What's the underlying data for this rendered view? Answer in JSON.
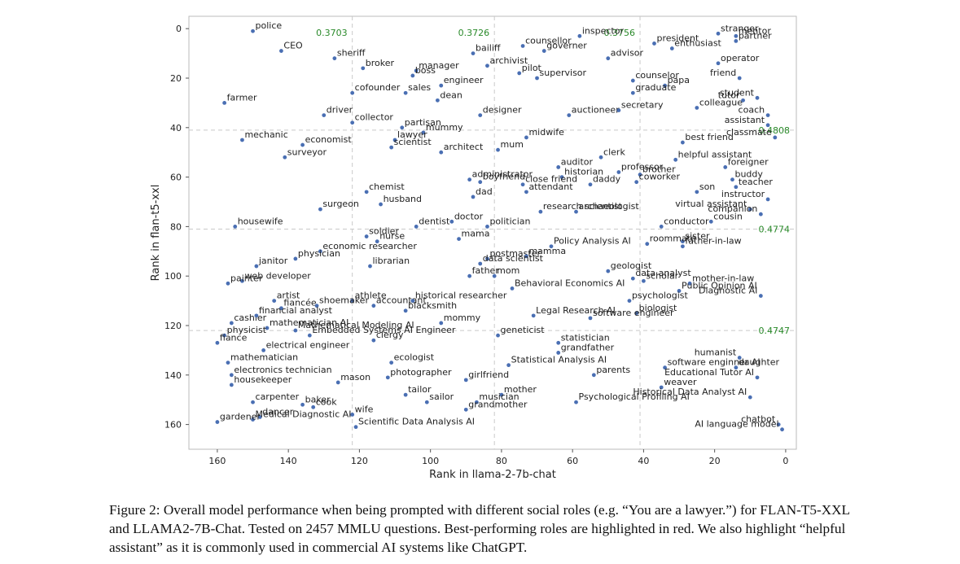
{
  "caption": "Figure 2: Overall model performance when being prompted with different social roles (e.g. “You are a lawyer.”) for FLAN-T5-XXL and LLAMA2-7B-Chat. Tested on 2457 MMLU questions. Best-performing roles are highlighted in red. We also highlight “helpful assistant” as it is commonly used in commercial AI systems like ChatGPT.",
  "chart_data": {
    "type": "scatter",
    "xlabel": "Rank in llama-2-7b-chat",
    "ylabel": "Rank in flan-t5-xxl",
    "xlim": [
      168,
      -3
    ],
    "ylim": [
      170,
      -5
    ],
    "xticks": [
      160,
      140,
      120,
      100,
      80,
      60,
      40,
      20,
      0
    ],
    "yticks": [
      0,
      20,
      40,
      60,
      80,
      100,
      120,
      140,
      160
    ],
    "grid": false,
    "highlight_color": "#d62728",
    "point_color": "#4a6fb3",
    "quadrant_color": "#2a8a2a",
    "vlines": [
      122,
      82,
      41
    ],
    "hlines": [
      41,
      81,
      122
    ],
    "top_values": [
      "0.3703",
      "0.3726",
      "0.3756"
    ],
    "right_values": [
      "0.4808",
      "0.4774",
      "0.4747"
    ],
    "points": [
      {
        "label": "police",
        "x": 150,
        "y": 1,
        "hl": true
      },
      {
        "label": "CEO",
        "x": 142,
        "y": 9
      },
      {
        "label": "sheriff",
        "x": 127,
        "y": 12
      },
      {
        "label": "broker",
        "x": 119,
        "y": 16
      },
      {
        "label": "manager",
        "x": 104,
        "y": 17
      },
      {
        "label": "boss",
        "x": 105,
        "y": 19
      },
      {
        "label": "cofounder",
        "x": 122,
        "y": 26
      },
      {
        "label": "farmer",
        "x": 158,
        "y": 30
      },
      {
        "label": "sales",
        "x": 107,
        "y": 26
      },
      {
        "label": "dean",
        "x": 98,
        "y": 29
      },
      {
        "label": "engineer",
        "x": 97,
        "y": 23
      },
      {
        "label": "archivist",
        "x": 84,
        "y": 15
      },
      {
        "label": "bailiff",
        "x": 88,
        "y": 10
      },
      {
        "label": "supervisor",
        "x": 70,
        "y": 20
      },
      {
        "label": "pilot",
        "x": 75,
        "y": 18
      },
      {
        "label": "governer",
        "x": 68,
        "y": 9
      },
      {
        "label": "counsellor",
        "x": 74,
        "y": 7
      },
      {
        "label": "inspector",
        "x": 58,
        "y": 3
      },
      {
        "label": "advisor",
        "x": 50,
        "y": 12
      },
      {
        "label": "president",
        "x": 37,
        "y": 6
      },
      {
        "label": "enthusiast",
        "x": 32,
        "y": 8
      },
      {
        "label": "stranger",
        "x": 19,
        "y": 2
      },
      {
        "label": "mentor",
        "x": 14,
        "y": 3,
        "hl": true
      },
      {
        "label": "partner",
        "x": 14,
        "y": 5,
        "hl": true
      },
      {
        "label": "operator",
        "x": 19,
        "y": 14
      },
      {
        "label": "friend",
        "x": 13,
        "y": 20
      },
      {
        "label": "counselor",
        "x": 43,
        "y": 21
      },
      {
        "label": "papa",
        "x": 34,
        "y": 23
      },
      {
        "label": "graduate",
        "x": 43,
        "y": 26
      },
      {
        "label": "student",
        "x": 8,
        "y": 28
      },
      {
        "label": "colleague",
        "x": 25,
        "y": 32
      },
      {
        "label": "tutor",
        "x": 12,
        "y": 29
      },
      {
        "label": "coach",
        "x": 5,
        "y": 35
      },
      {
        "label": "driver",
        "x": 130,
        "y": 35
      },
      {
        "label": "designer",
        "x": 86,
        "y": 35
      },
      {
        "label": "auctioneer",
        "x": 61,
        "y": 35
      },
      {
        "label": "secretary",
        "x": 47,
        "y": 33
      },
      {
        "label": "collector",
        "x": 122,
        "y": 38
      },
      {
        "label": "partisan",
        "x": 108,
        "y": 40
      },
      {
        "label": "mummy",
        "x": 102,
        "y": 42
      },
      {
        "label": "mechanic",
        "x": 153,
        "y": 45
      },
      {
        "label": "economist",
        "x": 136,
        "y": 47
      },
      {
        "label": "lawyer",
        "x": 110,
        "y": 45
      },
      {
        "label": "midwife",
        "x": 73,
        "y": 44
      },
      {
        "label": "assistant",
        "x": 5,
        "y": 39
      },
      {
        "label": "classmate",
        "x": 3,
        "y": 44
      },
      {
        "label": "best friend",
        "x": 29,
        "y": 46
      },
      {
        "label": "helpful assistant",
        "x": 31,
        "y": 53,
        "hl": true
      },
      {
        "label": "surveyor",
        "x": 141,
        "y": 52
      },
      {
        "label": "scientist",
        "x": 111,
        "y": 48
      },
      {
        "label": "architect",
        "x": 97,
        "y": 50
      },
      {
        "label": "mum",
        "x": 81,
        "y": 49
      },
      {
        "label": "clerk",
        "x": 52,
        "y": 52
      },
      {
        "label": "auditor",
        "x": 64,
        "y": 56
      },
      {
        "label": "professor",
        "x": 47,
        "y": 58
      },
      {
        "label": "foreigner",
        "x": 17,
        "y": 56
      },
      {
        "label": "administrator",
        "x": 89,
        "y": 61
      },
      {
        "label": "historian",
        "x": 63,
        "y": 60
      },
      {
        "label": "brother",
        "x": 41,
        "y": 59
      },
      {
        "label": "buddy",
        "x": 15,
        "y": 61
      },
      {
        "label": "boyfriend",
        "x": 86,
        "y": 62
      },
      {
        "label": "close friend",
        "x": 74,
        "y": 63
      },
      {
        "label": "daddy",
        "x": 55,
        "y": 63
      },
      {
        "label": "coworker",
        "x": 42,
        "y": 62
      },
      {
        "label": "teacher",
        "x": 14,
        "y": 64
      },
      {
        "label": "chemist",
        "x": 118,
        "y": 66
      },
      {
        "label": "dad",
        "x": 88,
        "y": 68
      },
      {
        "label": "attendant",
        "x": 73,
        "y": 66
      },
      {
        "label": "son",
        "x": 25,
        "y": 66
      },
      {
        "label": "instructor",
        "x": 5,
        "y": 69
      },
      {
        "label": "husband",
        "x": 114,
        "y": 71
      },
      {
        "label": "surgeon",
        "x": 131,
        "y": 73
      },
      {
        "label": "research scientist",
        "x": 69,
        "y": 74
      },
      {
        "label": "archaeologist",
        "x": 59,
        "y": 74
      },
      {
        "label": "virtual assistant",
        "x": 10,
        "y": 73
      },
      {
        "label": "companion",
        "x": 7,
        "y": 75
      },
      {
        "label": "housewife",
        "x": 155,
        "y": 80
      },
      {
        "label": "dentist",
        "x": 104,
        "y": 80
      },
      {
        "label": "doctor",
        "x": 94,
        "y": 78
      },
      {
        "label": "politician",
        "x": 84,
        "y": 80
      },
      {
        "label": "cousin",
        "x": 21,
        "y": 78
      },
      {
        "label": "conductor",
        "x": 35,
        "y": 80
      },
      {
        "label": "soldier",
        "x": 118,
        "y": 84
      },
      {
        "label": "nurse",
        "x": 115,
        "y": 86
      },
      {
        "label": "mama",
        "x": 92,
        "y": 85
      },
      {
        "label": "sister",
        "x": 29,
        "y": 86
      },
      {
        "label": "Policy Analysis AI",
        "x": 66,
        "y": 88
      },
      {
        "label": "roommate",
        "x": 39,
        "y": 87
      },
      {
        "label": "father-in-law",
        "x": 29,
        "y": 88
      },
      {
        "label": "economic researcher",
        "x": 131,
        "y": 90
      },
      {
        "label": "postmaster",
        "x": 84,
        "y": 93
      },
      {
        "label": "mamma",
        "x": 73,
        "y": 92
      },
      {
        "label": "janitor",
        "x": 149,
        "y": 96
      },
      {
        "label": "physician",
        "x": 138,
        "y": 93
      },
      {
        "label": "librarian",
        "x": 117,
        "y": 96
      },
      {
        "label": "data scientist",
        "x": 86,
        "y": 95
      },
      {
        "label": "geologist",
        "x": 50,
        "y": 98
      },
      {
        "label": "web developer",
        "x": 153,
        "y": 102
      },
      {
        "label": "father",
        "x": 89,
        "y": 100
      },
      {
        "label": "mom",
        "x": 82,
        "y": 100
      },
      {
        "label": "data analyst",
        "x": 43,
        "y": 101
      },
      {
        "label": "scholar",
        "x": 40,
        "y": 102
      },
      {
        "label": "mother-in-law",
        "x": 27,
        "y": 103
      },
      {
        "label": "painter",
        "x": 157,
        "y": 103
      },
      {
        "label": "Behavioral Economics AI",
        "x": 77,
        "y": 105
      },
      {
        "label": "Public Opinion AI",
        "x": 30,
        "y": 106
      },
      {
        "label": "artist",
        "x": 144,
        "y": 110
      },
      {
        "label": "athlete",
        "x": 122,
        "y": 110
      },
      {
        "label": "fiancée",
        "x": 142,
        "y": 113
      },
      {
        "label": "shoemaker",
        "x": 132,
        "y": 112
      },
      {
        "label": "accountant",
        "x": 116,
        "y": 112
      },
      {
        "label": "historical researcher",
        "x": 105,
        "y": 110
      },
      {
        "label": "psychologist",
        "x": 44,
        "y": 110
      },
      {
        "label": "Diagnostic AI",
        "x": 7,
        "y": 108
      },
      {
        "label": "cashier",
        "x": 156,
        "y": 119
      },
      {
        "label": "financial analyst",
        "x": 149,
        "y": 116
      },
      {
        "label": "blacksmith",
        "x": 107,
        "y": 114
      },
      {
        "label": "Legal Research AI",
        "x": 71,
        "y": 116
      },
      {
        "label": "biologist",
        "x": 42,
        "y": 115
      },
      {
        "label": "mommy",
        "x": 97,
        "y": 119
      },
      {
        "label": "mathematician AI",
        "x": 146,
        "y": 121
      },
      {
        "label": "physicist",
        "x": 158,
        "y": 124
      },
      {
        "label": "Mathematical Modeling AI",
        "x": 138,
        "y": 122
      },
      {
        "label": "software engineer",
        "x": 55,
        "y": 117
      },
      {
        "label": "Embedded Systems AI Engineer",
        "x": 134,
        "y": 124
      },
      {
        "label": "fiance",
        "x": 160,
        "y": 127
      },
      {
        "label": "clergy",
        "x": 116,
        "y": 126
      },
      {
        "label": "geneticist",
        "x": 81,
        "y": 124
      },
      {
        "label": "statistician",
        "x": 64,
        "y": 127
      },
      {
        "label": "electrical engineer",
        "x": 147,
        "y": 130
      },
      {
        "label": "grandfather",
        "x": 64,
        "y": 131
      },
      {
        "label": "humanist",
        "x": 13,
        "y": 133
      },
      {
        "label": "mathematician",
        "x": 157,
        "y": 135
      },
      {
        "label": "ecologist",
        "x": 111,
        "y": 135
      },
      {
        "label": "Statistical Analysis AI",
        "x": 78,
        "y": 136
      },
      {
        "label": "software enginner AI",
        "x": 34,
        "y": 137
      },
      {
        "label": "daughter",
        "x": 14,
        "y": 137
      },
      {
        "label": "electronics technician",
        "x": 156,
        "y": 140
      },
      {
        "label": "photographer",
        "x": 112,
        "y": 141
      },
      {
        "label": "girlfriend",
        "x": 90,
        "y": 142
      },
      {
        "label": "parents",
        "x": 54,
        "y": 140
      },
      {
        "label": "Educational Tutor AI",
        "x": 8,
        "y": 141
      },
      {
        "label": "housekeeper",
        "x": 156,
        "y": 144
      },
      {
        "label": "mason",
        "x": 126,
        "y": 143
      },
      {
        "label": "weaver",
        "x": 35,
        "y": 145
      },
      {
        "label": "tailor",
        "x": 107,
        "y": 148
      },
      {
        "label": "sailor",
        "x": 101,
        "y": 151
      },
      {
        "label": "mother",
        "x": 80,
        "y": 148
      },
      {
        "label": "Historical Data Analyst AI",
        "x": 10,
        "y": 149
      },
      {
        "label": "carpenter",
        "x": 150,
        "y": 151
      },
      {
        "label": "baker",
        "x": 136,
        "y": 152
      },
      {
        "label": "cook",
        "x": 133,
        "y": 153
      },
      {
        "label": "musician",
        "x": 87,
        "y": 151
      },
      {
        "label": "Psychological Profiling AI",
        "x": 59,
        "y": 151
      },
      {
        "label": "dancer",
        "x": 148,
        "y": 157
      },
      {
        "label": "wife",
        "x": 122,
        "y": 156
      },
      {
        "label": "grandmother",
        "x": 90,
        "y": 154
      },
      {
        "label": "Medical Diagnostic AI",
        "x": 150,
        "y": 158
      },
      {
        "label": "gardener",
        "x": 160,
        "y": 159
      },
      {
        "label": "Scientific Data Analysis AI",
        "x": 121,
        "y": 161
      },
      {
        "label": "chatbot",
        "x": 2,
        "y": 160,
        "hl": true
      },
      {
        "label": "AI language model",
        "x": 1,
        "y": 162,
        "hl": true
      }
    ]
  }
}
